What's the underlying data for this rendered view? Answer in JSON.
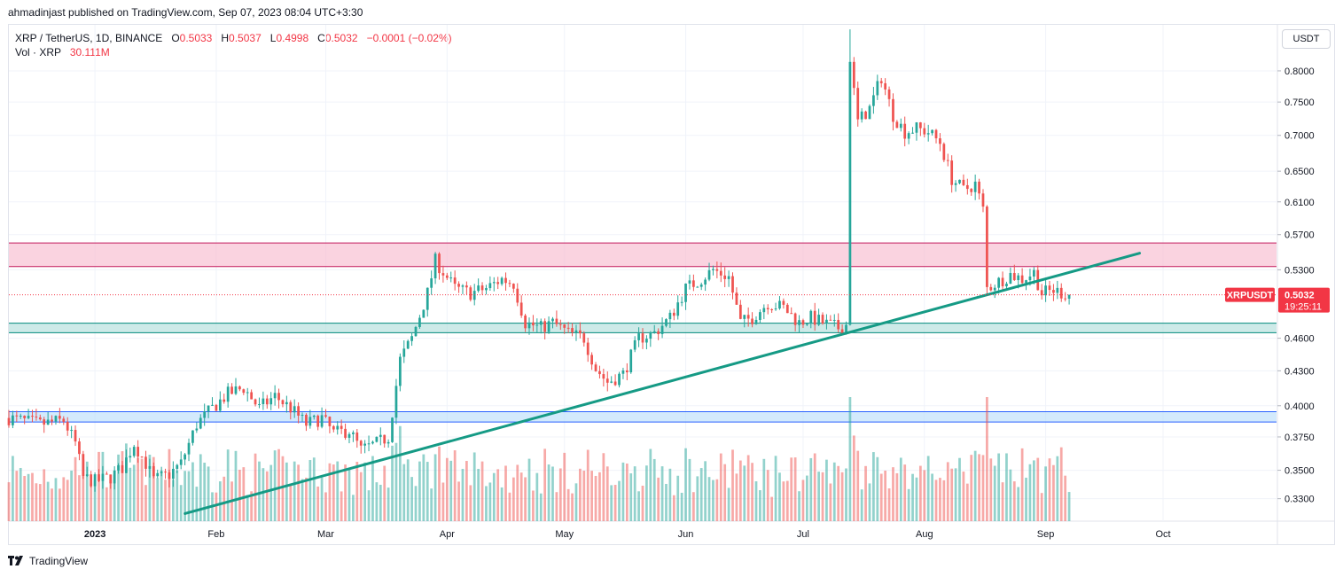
{
  "header": {
    "published": "ahmadinjast published on TradingView.com, Sep 07, 2023 08:04 UTC+3:30"
  },
  "legend": {
    "symbol": "XRP / TetherUS, 1D, BINANCE",
    "open_label": "O",
    "open": "0.5033",
    "high_label": "H",
    "high": "0.5037",
    "low_label": "L",
    "low": "0.4998",
    "close_label": "C",
    "close": "0.5032",
    "change": "−0.0001 (−0.02%)",
    "vol_label": "Vol · XRP",
    "vol_value": "30.111M"
  },
  "currency_button": "USDT",
  "footer": {
    "brand": "TradingView"
  },
  "colors": {
    "up": "#26a69a",
    "down": "#ef5350",
    "resistance_zone": "#f8bbd0",
    "support_zone": "#b2dfdb",
    "low_zone": "#bbdefb",
    "trendline": "#159a85",
    "price_tag": "#f23645"
  },
  "chart_data": {
    "type": "candlestick",
    "symbol": "XRPUSDT",
    "last_price": "0.5032",
    "countdown": "19:25:11",
    "y_axis": {
      "scale": "log",
      "range": [
        0.315,
        0.88
      ],
      "ticks": [
        "0.8000",
        "0.7500",
        "0.7000",
        "0.6500",
        "0.6100",
        "0.5700",
        "0.5300",
        "0.4600",
        "0.4300",
        "0.4000",
        "0.3750",
        "0.3500",
        "0.3300"
      ]
    },
    "x_axis": {
      "range": [
        "2022-12-10",
        "2023-10-30"
      ],
      "ticks": [
        {
          "label": "2023",
          "date": "2023-01-01",
          "bold": true
        },
        {
          "label": "Feb",
          "date": "2023-02-01"
        },
        {
          "label": "Mar",
          "date": "2023-03-01"
        },
        {
          "label": "Apr",
          "date": "2023-04-01"
        },
        {
          "label": "May",
          "date": "2023-05-01"
        },
        {
          "label": "Jun",
          "date": "2023-06-01"
        },
        {
          "label": "Jul",
          "date": "2023-07-01"
        },
        {
          "label": "Aug",
          "date": "2023-08-01"
        },
        {
          "label": "Sep",
          "date": "2023-09-01"
        },
        {
          "label": "Oct",
          "date": "2023-10-01"
        }
      ]
    },
    "zones": [
      {
        "name": "resistance",
        "low": 0.5335,
        "high": 0.5603
      },
      {
        "name": "support",
        "low": 0.4653,
        "high": 0.4745
      },
      {
        "name": "lower",
        "low": 0.3868,
        "high": 0.3951
      }
    ],
    "trendline": [
      {
        "date": "2023-01-24",
        "price": 0.32
      },
      {
        "date": "2023-09-25",
        "price": 0.5485
      }
    ],
    "price_path": [
      [
        "2022-12-10",
        0.39
      ],
      [
        "2022-12-18",
        0.385
      ],
      [
        "2022-12-24",
        0.388
      ],
      [
        "2022-12-27",
        0.37
      ],
      [
        "2022-12-29",
        0.345
      ],
      [
        "2023-01-01",
        0.342
      ],
      [
        "2023-01-05",
        0.345
      ],
      [
        "2023-01-08",
        0.352
      ],
      [
        "2023-01-11",
        0.37
      ],
      [
        "2023-01-14",
        0.355
      ],
      [
        "2023-01-16",
        0.343
      ],
      [
        "2023-01-20",
        0.347
      ],
      [
        "2023-01-23",
        0.355
      ],
      [
        "2023-01-27",
        0.385
      ],
      [
        "2023-01-31",
        0.398
      ],
      [
        "2023-02-04",
        0.41
      ],
      [
        "2023-02-08",
        0.415
      ],
      [
        "2023-02-12",
        0.398
      ],
      [
        "2023-02-16",
        0.408
      ],
      [
        "2023-02-20",
        0.398
      ],
      [
        "2023-02-24",
        0.385
      ],
      [
        "2023-02-28",
        0.39
      ],
      [
        "2023-03-03",
        0.378
      ],
      [
        "2023-03-07",
        0.38
      ],
      [
        "2023-03-10",
        0.365
      ],
      [
        "2023-03-14",
        0.37
      ],
      [
        "2023-03-17",
        0.375
      ],
      [
        "2023-03-20",
        0.44
      ],
      [
        "2023-03-23",
        0.46
      ],
      [
        "2023-03-27",
        0.505
      ],
      [
        "2023-03-29",
        0.54
      ],
      [
        "2023-04-03",
        0.51
      ],
      [
        "2023-04-07",
        0.505
      ],
      [
        "2023-04-11",
        0.51
      ],
      [
        "2023-04-15",
        0.52
      ],
      [
        "2023-04-18",
        0.515
      ],
      [
        "2023-04-21",
        0.475
      ],
      [
        "2023-04-25",
        0.47
      ],
      [
        "2023-04-28",
        0.475
      ],
      [
        "2023-05-02",
        0.465
      ],
      [
        "2023-05-06",
        0.46
      ],
      [
        "2023-05-09",
        0.432
      ],
      [
        "2023-05-12",
        0.42
      ],
      [
        "2023-05-16",
        0.427
      ],
      [
        "2023-05-20",
        0.46
      ],
      [
        "2023-05-24",
        0.465
      ],
      [
        "2023-05-28",
        0.48
      ],
      [
        "2023-06-01",
        0.51
      ],
      [
        "2023-06-05",
        0.52
      ],
      [
        "2023-06-08",
        0.53
      ],
      [
        "2023-06-12",
        0.522
      ],
      [
        "2023-06-15",
        0.475
      ],
      [
        "2023-06-18",
        0.48
      ],
      [
        "2023-06-22",
        0.495
      ],
      [
        "2023-06-26",
        0.49
      ],
      [
        "2023-06-30",
        0.475
      ],
      [
        "2023-07-03",
        0.48
      ],
      [
        "2023-07-06",
        0.475
      ],
      [
        "2023-07-10",
        0.47
      ],
      [
        "2023-07-12",
        0.473
      ],
      [
        "2023-07-13",
        0.815
      ],
      [
        "2023-07-15",
        0.72
      ],
      [
        "2023-07-18",
        0.74
      ],
      [
        "2023-07-21",
        0.79
      ],
      [
        "2023-07-24",
        0.73
      ],
      [
        "2023-07-27",
        0.705
      ],
      [
        "2023-07-30",
        0.71
      ],
      [
        "2023-08-02",
        0.705
      ],
      [
        "2023-08-05",
        0.69
      ],
      [
        "2023-08-08",
        0.64
      ],
      [
        "2023-08-11",
        0.625
      ],
      [
        "2023-08-14",
        0.633
      ],
      [
        "2023-08-16",
        0.6
      ],
      [
        "2023-08-17",
        0.51
      ],
      [
        "2023-08-19",
        0.515
      ],
      [
        "2023-08-23",
        0.525
      ],
      [
        "2023-08-26",
        0.52
      ],
      [
        "2023-08-29",
        0.527
      ],
      [
        "2023-08-31",
        0.505
      ],
      [
        "2023-09-03",
        0.508
      ],
      [
        "2023-09-07",
        0.5032
      ]
    ],
    "volume_spike": {
      "date": "2023-07-13",
      "volume_rel": 1.0
    }
  }
}
